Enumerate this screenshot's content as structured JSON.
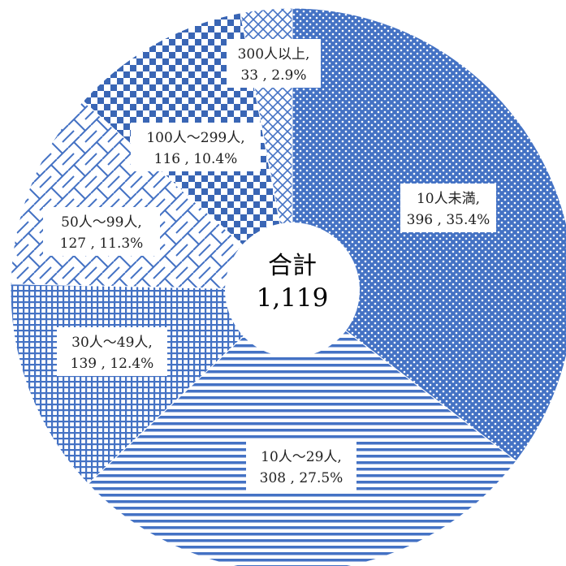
{
  "chart_data": {
    "type": "pie",
    "variant": "donut",
    "start": "12 o'clock",
    "direction": "clockwise",
    "categories": [
      "10人未満",
      "10人～29人",
      "30人～49人",
      "50人～99人",
      "100人～299人",
      "300人以上"
    ],
    "values": [
      396,
      308,
      139,
      127,
      116,
      33
    ],
    "percents": [
      "35.4%",
      "27.5%",
      "12.4%",
      "11.3%",
      "10.4%",
      "2.9%"
    ],
    "labels": [
      {
        "line1": "10人未満,",
        "line2": "396 , 35.4%"
      },
      {
        "line1": "10人～29人,",
        "line2": "308 , 27.5%"
      },
      {
        "line1": "30人～49人,",
        "line2": "139 , 12.4%"
      },
      {
        "line1": "50人～99人,",
        "line2": "127 , 11.3%"
      },
      {
        "line1": "100人～299人,",
        "line2": "116 , 10.4%"
      },
      {
        "line1": "300人以上,",
        "line2": "33 , 2.9%"
      }
    ],
    "patterns": [
      "dots",
      "horizontal-stripes",
      "grid",
      "brick",
      "checker",
      "diagonal-cross"
    ],
    "color": "#4472c4",
    "center_label": "合計",
    "center_value": "1,119"
  }
}
